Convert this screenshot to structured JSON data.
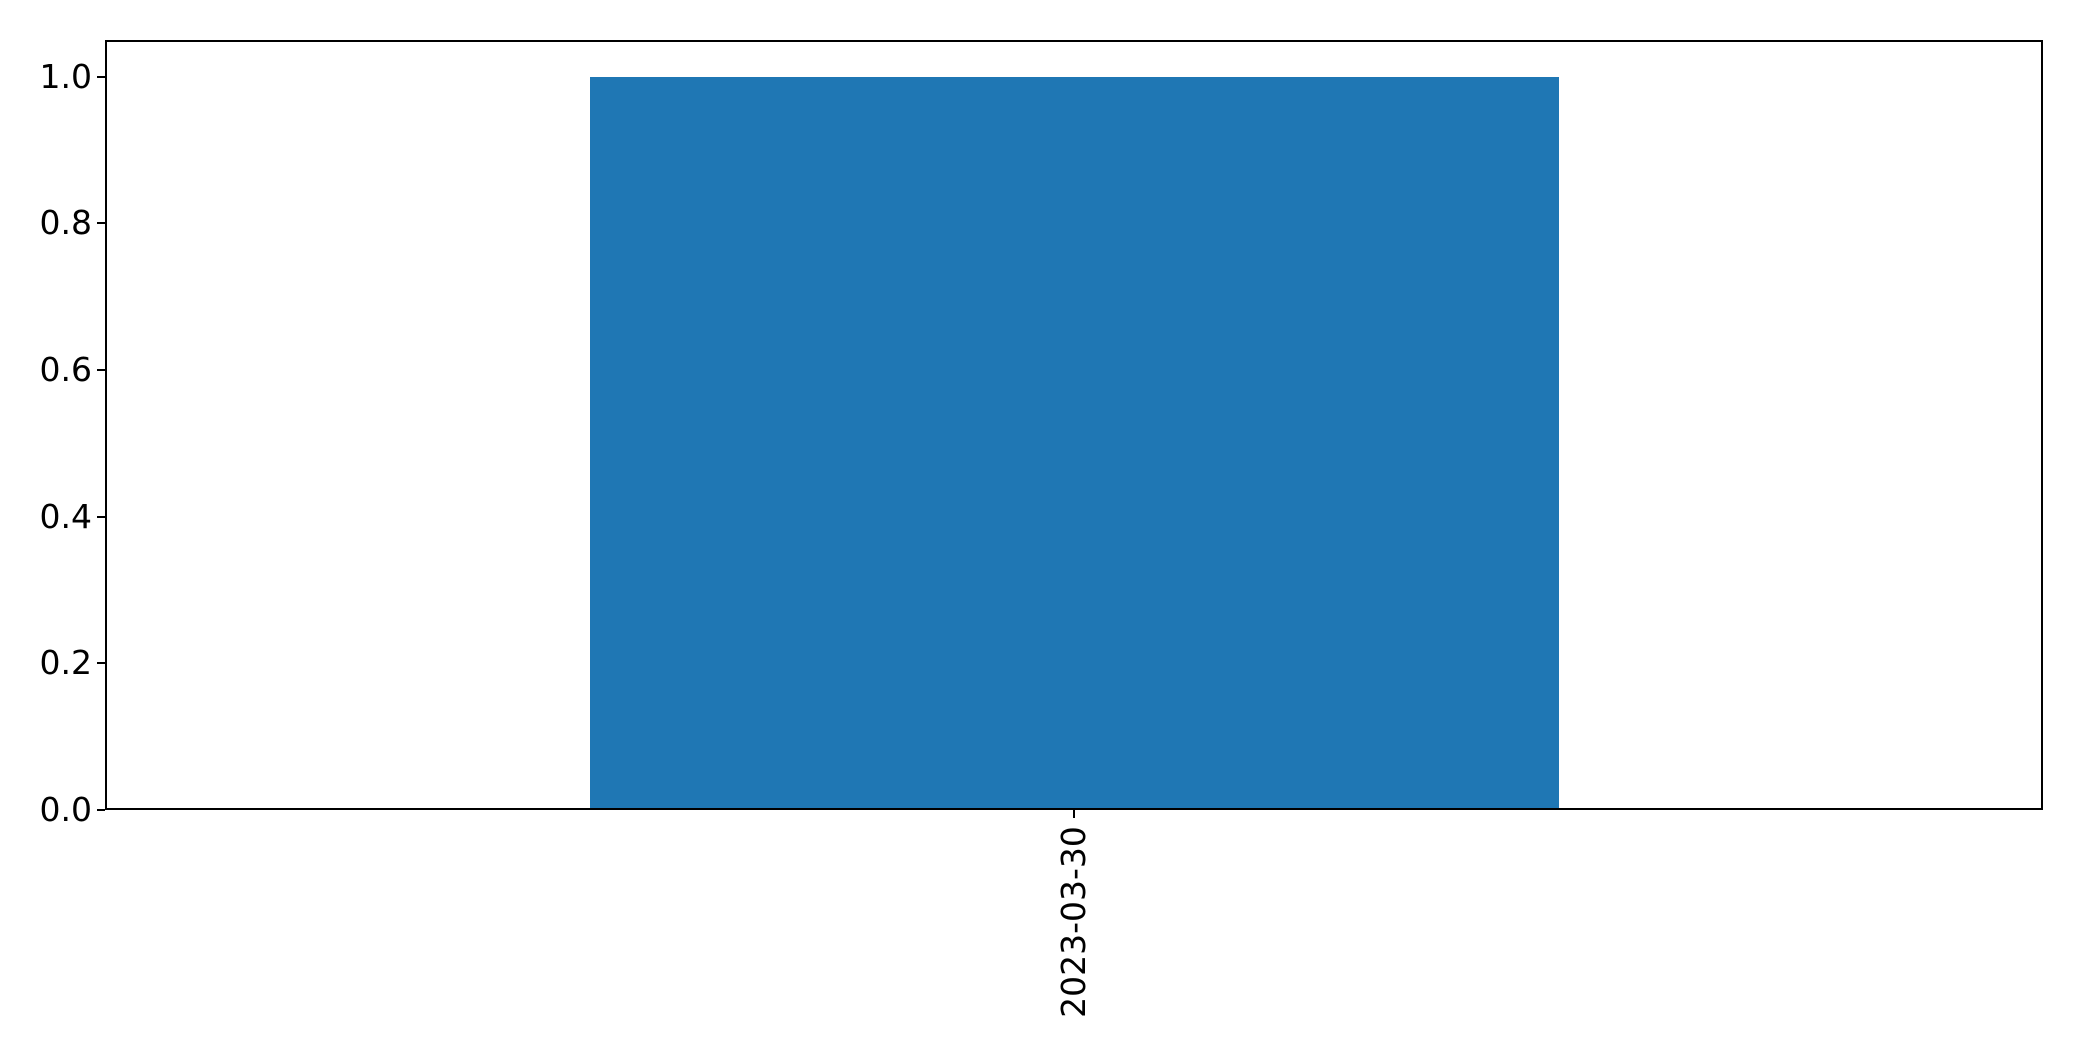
{
  "chart_data": {
    "type": "bar",
    "title": "",
    "xlabel": "",
    "ylabel": "",
    "categories": [
      "2023-03-30"
    ],
    "values": [
      1.0
    ],
    "ylim": [
      0,
      1.05
    ],
    "yticks": [
      0.0,
      0.2,
      0.4,
      0.6,
      0.8,
      1.0
    ],
    "ytick_labels": [
      "0.0",
      "0.2",
      "0.4",
      "0.6",
      "0.8",
      "1.0"
    ],
    "xtick_labels": [
      "2023-03-30"
    ],
    "xtick_rotation_deg": 90,
    "bar_color": "#1f77b4",
    "bar_width_fraction": 0.5,
    "axis_color": "#000000",
    "tick_label_color": "#000000",
    "background_color": "#ffffff",
    "grid": false,
    "legend": null
  }
}
